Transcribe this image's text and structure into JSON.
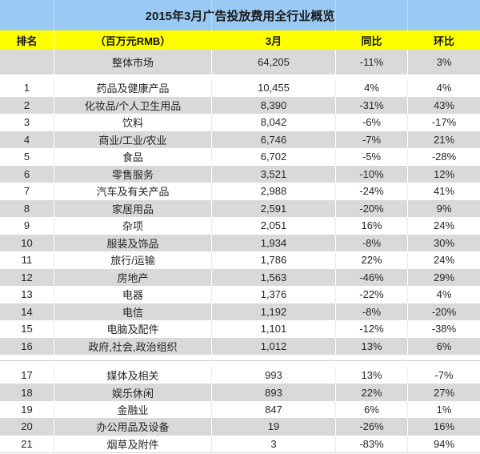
{
  "chart_data": {
    "type": "table",
    "title": "2015年3月广告投放费用全行业概览",
    "columns": [
      "排名",
      "（百万元RMB）",
      "3月",
      "同比",
      "环比"
    ],
    "summary_row": {
      "rank": "",
      "category": "整体市场",
      "value": "64,205",
      "yoy": "-11%",
      "mom": "3%"
    },
    "rows_top": [
      {
        "rank": "1",
        "category": "药品及健康产品",
        "value": "10,455",
        "yoy": "4%",
        "mom": "4%"
      },
      {
        "rank": "2",
        "category": "化妆品/个人卫生用品",
        "value": "8,390",
        "yoy": "-31%",
        "mom": "43%"
      },
      {
        "rank": "3",
        "category": "饮料",
        "value": "8,042",
        "yoy": "-6%",
        "mom": "-17%"
      },
      {
        "rank": "4",
        "category": "商业/工业/农业",
        "value": "6,746",
        "yoy": "-7%",
        "mom": "21%"
      },
      {
        "rank": "5",
        "category": "食品",
        "value": "6,702",
        "yoy": "-5%",
        "mom": "-28%"
      },
      {
        "rank": "6",
        "category": "零售服务",
        "value": "3,521",
        "yoy": "-10%",
        "mom": "12%"
      },
      {
        "rank": "7",
        "category": "汽车及有关产品",
        "value": "2,988",
        "yoy": "-24%",
        "mom": "41%"
      },
      {
        "rank": "8",
        "category": "家居用品",
        "value": "2,591",
        "yoy": "-20%",
        "mom": "9%"
      },
      {
        "rank": "9",
        "category": "杂项",
        "value": "2,051",
        "yoy": "16%",
        "mom": "24%"
      },
      {
        "rank": "10",
        "category": "服装及饰品",
        "value": "1,934",
        "yoy": "-8%",
        "mom": "30%"
      },
      {
        "rank": "11",
        "category": "旅行/运输",
        "value": "1,786",
        "yoy": "22%",
        "mom": "24%"
      },
      {
        "rank": "12",
        "category": "房地产",
        "value": "1,563",
        "yoy": "-46%",
        "mom": "29%"
      },
      {
        "rank": "13",
        "category": "电器",
        "value": "1,376",
        "yoy": "-22%",
        "mom": "4%"
      },
      {
        "rank": "14",
        "category": "电信",
        "value": "1,192",
        "yoy": "-8%",
        "mom": "-20%"
      },
      {
        "rank": "15",
        "category": "电脑及配件",
        "value": "1,101",
        "yoy": "-12%",
        "mom": "-38%"
      },
      {
        "rank": "16",
        "category": "政府,社会,政治组织",
        "value": "1,012",
        "yoy": "13%",
        "mom": "6%"
      }
    ],
    "rows_bottom": [
      {
        "rank": "17",
        "category": "媒体及相关",
        "value": "993",
        "yoy": "13%",
        "mom": "-7%"
      },
      {
        "rank": "18",
        "category": "娱乐休闲",
        "value": "893",
        "yoy": "22%",
        "mom": "27%"
      },
      {
        "rank": "19",
        "category": "金融业",
        "value": "847",
        "yoy": "6%",
        "mom": "1%"
      },
      {
        "rank": "20",
        "category": "办公用品及设备",
        "value": "19",
        "yoy": "-26%",
        "mom": "16%"
      },
      {
        "rank": "21",
        "category": "烟草及附件",
        "value": "3",
        "yoy": "-83%",
        "mom": "94%"
      }
    ]
  },
  "colors": {
    "title_bg": "#9ACAF3",
    "header_bg": "#FFFF00",
    "stripe_gray": "#D9D9D9",
    "row_white": "#FFFFFF",
    "text": "#262626"
  }
}
